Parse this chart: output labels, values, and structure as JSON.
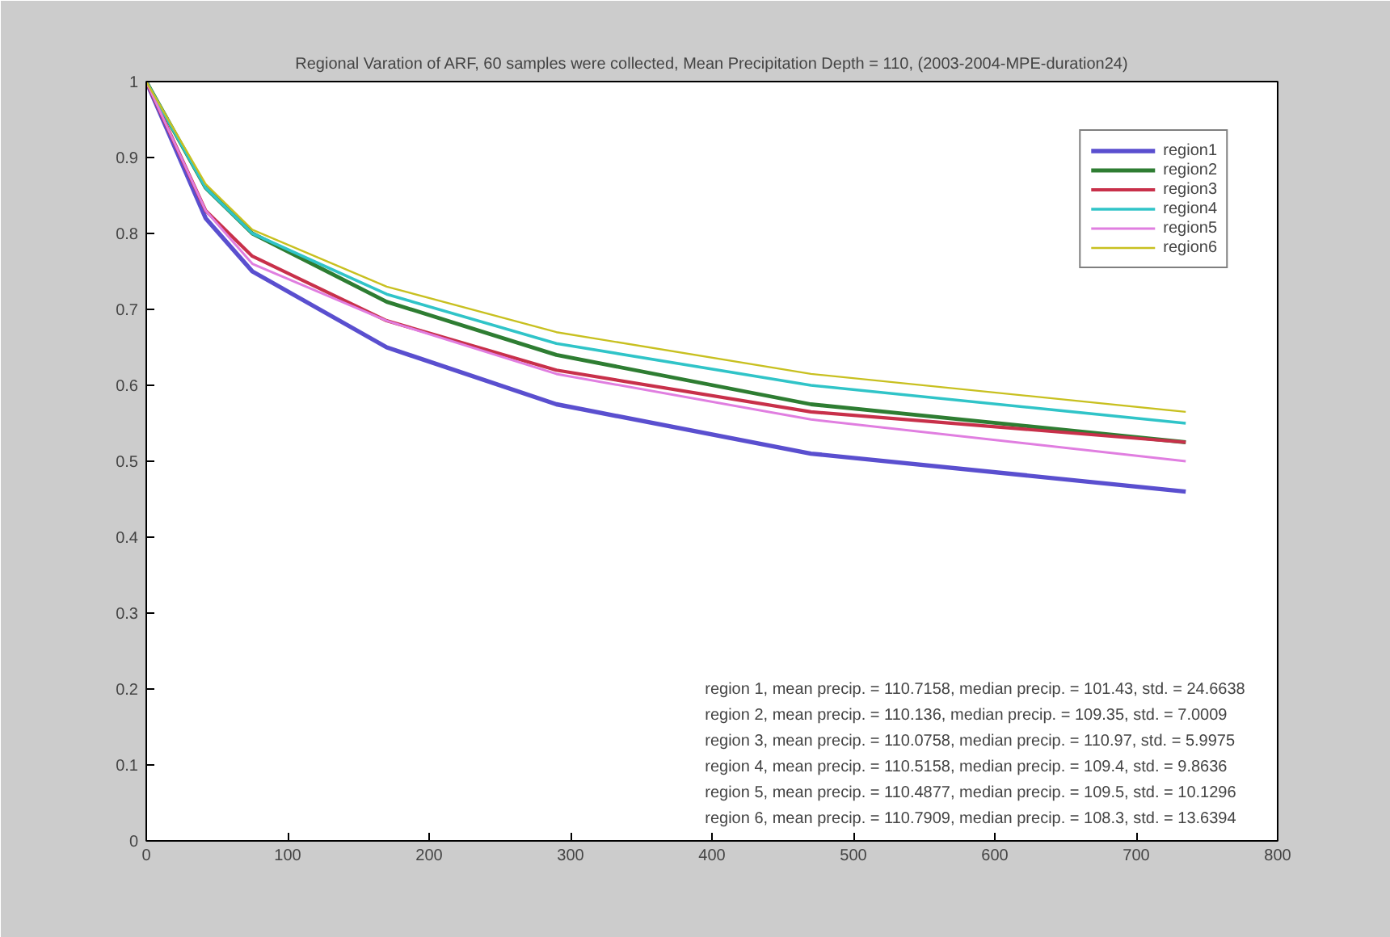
{
  "chart_data": {
    "type": "line",
    "title": "Regional Varation of ARF, 60 samples were collected, Mean Precipitation Depth = 110, (2003-2004-MPE-duration24)",
    "x": [
      0,
      42,
      75,
      170,
      290,
      470,
      735
    ],
    "series": [
      {
        "name": "region1",
        "color": "#5a4fcf",
        "values": [
          1,
          0.82,
          0.75,
          0.65,
          0.575,
          0.51,
          0.46
        ]
      },
      {
        "name": "region2",
        "color": "#2e7d32",
        "values": [
          1,
          0.86,
          0.8,
          0.71,
          0.64,
          0.575,
          0.525
        ]
      },
      {
        "name": "region3",
        "color": "#c8304a",
        "values": [
          1,
          0.83,
          0.77,
          0.685,
          0.62,
          0.565,
          0.525
        ]
      },
      {
        "name": "region4",
        "color": "#30c4c8",
        "values": [
          1,
          0.86,
          0.8,
          0.72,
          0.655,
          0.6,
          0.55
        ]
      },
      {
        "name": "region5",
        "color": "#e07ee0",
        "values": [
          1,
          0.83,
          0.76,
          0.685,
          0.615,
          0.555,
          0.5
        ]
      },
      {
        "name": "region6",
        "color": "#c8c020",
        "values": [
          1,
          0.865,
          0.805,
          0.73,
          0.67,
          0.615,
          0.565
        ]
      }
    ],
    "xlim": [
      0,
      800
    ],
    "ylim": [
      0,
      1
    ],
    "xticks": [
      0,
      100,
      200,
      300,
      400,
      500,
      600,
      700,
      800
    ],
    "yticks": [
      0,
      0.1,
      0.2,
      0.3,
      0.4,
      0.5,
      0.6,
      0.7,
      0.8,
      0.9,
      1
    ],
    "annotations": [
      "region 1, mean precip. = 110.7158, median precip. = 101.43, std. = 24.6638",
      "region 2, mean precip. = 110.136, median precip. = 109.35, std. = 7.0009",
      "region 3, mean precip. = 110.0758, median precip. = 110.97, std. = 5.9975",
      "region 4, mean precip. = 110.5158, median precip. = 109.4, std. = 9.8636",
      "region 5, mean precip. = 110.4877, median precip. = 109.5, std. = 10.1296",
      "region 6, mean precip. = 110.7909, median precip. = 108.3, std. = 13.6394"
    ],
    "legend": "top right",
    "grid": false,
    "marker": "none",
    "line_style": "solid"
  }
}
